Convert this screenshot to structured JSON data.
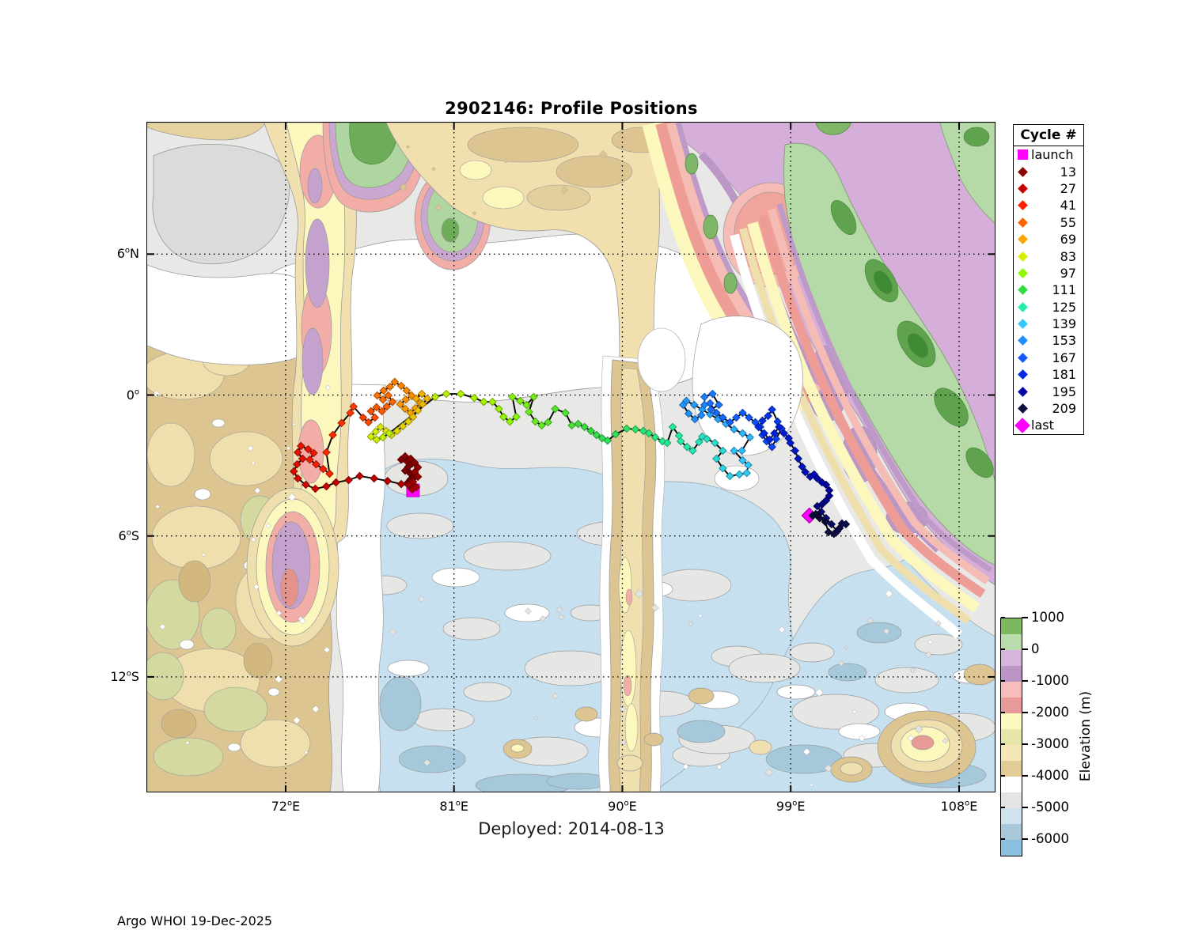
{
  "title": "2902146: Profile Positions",
  "deployed_text": "Deployed: 2014-08-13",
  "footer": "Argo WHOI 19-Dec-2025",
  "axes": {
    "x_tick_labels": [
      {
        "value": "72",
        "hem": "E"
      },
      {
        "value": "81",
        "hem": "E"
      },
      {
        "value": "90",
        "hem": "E"
      },
      {
        "value": "99",
        "hem": "E"
      },
      {
        "value": "108",
        "hem": "E"
      }
    ],
    "y_tick_labels": [
      {
        "value": "6",
        "hem": "N"
      },
      {
        "value": "0",
        "hem": ""
      },
      {
        "value": "6",
        "hem": "S"
      },
      {
        "value": "12",
        "hem": "S"
      }
    ]
  },
  "legend": {
    "header": "Cycle #",
    "items": [
      {
        "label": "launch",
        "marker": "square",
        "color": "#FF00FF"
      },
      {
        "label": "13",
        "marker": "diamond",
        "color": "#8B0000"
      },
      {
        "label": "27",
        "marker": "diamond",
        "color": "#C90000"
      },
      {
        "label": "41",
        "marker": "diamond",
        "color": "#FF1E00"
      },
      {
        "label": "55",
        "marker": "diamond",
        "color": "#FF6400"
      },
      {
        "label": "69",
        "marker": "diamond",
        "color": "#FFA300"
      },
      {
        "label": "83",
        "marker": "diamond",
        "color": "#D8EE00"
      },
      {
        "label": "97",
        "marker": "diamond",
        "color": "#8DFA00"
      },
      {
        "label": "111",
        "marker": "diamond",
        "color": "#33DD44"
      },
      {
        "label": "125",
        "marker": "diamond",
        "color": "#22EFA5"
      },
      {
        "label": "139",
        "marker": "diamond",
        "color": "#33C6FF"
      },
      {
        "label": "153",
        "marker": "diamond",
        "color": "#1E8FFF"
      },
      {
        "label": "167",
        "marker": "diamond",
        "color": "#1158FF"
      },
      {
        "label": "181",
        "marker": "diamond",
        "color": "#0026E6"
      },
      {
        "label": "195",
        "marker": "diamond",
        "color": "#0005A8"
      },
      {
        "label": "209",
        "marker": "diamond",
        "color": "#0E0E3E"
      },
      {
        "label": "last",
        "marker": "diamond-large",
        "color": "#FF00FF"
      }
    ]
  },
  "colorbar": {
    "label": "Elevation (m)",
    "tick_labels": [
      "1000",
      "0",
      "-1000",
      "-2000",
      "-3000",
      "-4000",
      "-5000",
      "-6000"
    ],
    "band_colors": [
      "#7CB860",
      "#B8DCAA",
      "#D7B4DB",
      "#BA95C6",
      "#F7BCBC",
      "#E89A9A",
      "#FCF9C0",
      "#E6E6A8",
      "#F6E7B8",
      "#E2CC96",
      "#FFFFFF",
      "#E4E4E4",
      "#CFE3EE",
      "#A8C8DA",
      "#8AC0DD"
    ],
    "band_step_m": 500,
    "top_value_m": 1000
  },
  "chart_data": {
    "type": "scatter",
    "title": "2902146: Profile Positions",
    "xlabel": "Longitude",
    "ylabel": "Latitude",
    "lon_range": [
      64.6,
      110.0
    ],
    "lat_range": [
      -16.9,
      11.6
    ],
    "grid_lon": [
      72,
      81,
      90,
      99,
      108
    ],
    "grid_lat": [
      6,
      0,
      -6,
      -12
    ],
    "legend_position": "upper right outside",
    "grid": "dotted",
    "launch": [
      78.81,
      -4.06
    ],
    "last": [
      100.0,
      -5.13
    ],
    "colormap_stops": [
      [
        0.0,
        "#6B0000"
      ],
      [
        0.055,
        "#8B0000"
      ],
      [
        0.12,
        "#C80000"
      ],
      [
        0.19,
        "#FF2000"
      ],
      [
        0.25,
        "#FF6500"
      ],
      [
        0.32,
        "#FFA300"
      ],
      [
        0.385,
        "#D8EE00"
      ],
      [
        0.45,
        "#8DFA00"
      ],
      [
        0.52,
        "#33DD44"
      ],
      [
        0.585,
        "#22EFA5"
      ],
      [
        0.65,
        "#33C6FF"
      ],
      [
        0.715,
        "#1E8FFF"
      ],
      [
        0.78,
        "#1158FF"
      ],
      [
        0.845,
        "#0026E6"
      ],
      [
        0.91,
        "#0005A8"
      ],
      [
        0.975,
        "#0E0E3E"
      ],
      [
        1.0,
        "#0A0A33"
      ]
    ],
    "trajectory_lonlat": [
      [
        78.68,
        -3.92
      ],
      [
        78.51,
        -3.75
      ],
      [
        78.68,
        -3.59
      ],
      [
        78.85,
        -3.45
      ],
      [
        78.64,
        -3.32
      ],
      [
        78.39,
        -3.22
      ],
      [
        78.56,
        -3.05
      ],
      [
        78.77,
        -2.91
      ],
      [
        78.47,
        -2.81
      ],
      [
        78.18,
        -2.75
      ],
      [
        78.39,
        -2.61
      ],
      [
        78.68,
        -2.71
      ],
      [
        78.9,
        -2.88
      ],
      [
        79.07,
        -3.08
      ],
      [
        78.9,
        -3.28
      ],
      [
        79.07,
        -3.48
      ],
      [
        78.81,
        -3.69
      ],
      [
        78.56,
        -3.82
      ],
      [
        78.77,
        -4.02
      ],
      [
        78.98,
        -3.92
      ],
      [
        78.18,
        -3.79
      ],
      [
        77.45,
        -3.66
      ],
      [
        76.73,
        -3.55
      ],
      [
        75.96,
        -3.45
      ],
      [
        75.37,
        -3.62
      ],
      [
        74.69,
        -3.72
      ],
      [
        74.18,
        -3.89
      ],
      [
        73.59,
        -3.99
      ],
      [
        73.08,
        -3.82
      ],
      [
        72.65,
        -3.55
      ],
      [
        72.44,
        -3.25
      ],
      [
        72.61,
        -2.95
      ],
      [
        72.91,
        -2.71
      ],
      [
        72.65,
        -2.44
      ],
      [
        72.82,
        -2.17
      ],
      [
        73.21,
        -2.31
      ],
      [
        73.5,
        -2.47
      ],
      [
        73.29,
        -2.75
      ],
      [
        73.63,
        -2.95
      ],
      [
        74.01,
        -3.15
      ],
      [
        74.35,
        -3.35
      ],
      [
        74.18,
        -2.44
      ],
      [
        74.52,
        -1.7
      ],
      [
        74.99,
        -1.19
      ],
      [
        75.46,
        -0.76
      ],
      [
        75.63,
        -0.49
      ],
      [
        76.14,
        -0.96
      ],
      [
        76.43,
        -1.16
      ],
      [
        76.77,
        -0.96
      ],
      [
        76.56,
        -0.69
      ],
      [
        76.86,
        -0.52
      ],
      [
        77.15,
        -0.69
      ],
      [
        77.41,
        -0.49
      ],
      [
        77.71,
        -0.29
      ],
      [
        77.49,
        -0.02
      ],
      [
        77.2,
        -0.19
      ],
      [
        76.9,
        -0.02
      ],
      [
        77.24,
        0.19
      ],
      [
        77.58,
        0.35
      ],
      [
        77.83,
        0.56
      ],
      [
        78.18,
        0.39
      ],
      [
        78.47,
        0.19
      ],
      [
        78.73,
        -0.02
      ],
      [
        78.43,
        -0.19
      ],
      [
        78.13,
        -0.39
      ],
      [
        78.39,
        -0.59
      ],
      [
        78.68,
        -0.76
      ],
      [
        78.94,
        -0.56
      ],
      [
        79.19,
        -0.35
      ],
      [
        78.98,
        -0.15
      ],
      [
        79.28,
        0.05
      ],
      [
        79.57,
        -0.15
      ],
      [
        79.32,
        -0.39
      ],
      [
        79.07,
        -0.66
      ],
      [
        78.81,
        -0.93
      ],
      [
        78.56,
        -1.13
      ],
      [
        78.26,
        -1.33
      ],
      [
        77.96,
        -1.53
      ],
      [
        77.66,
        -1.7
      ],
      [
        77.37,
        -1.53
      ],
      [
        77.07,
        -1.36
      ],
      [
        76.81,
        -1.56
      ],
      [
        76.56,
        -1.77
      ],
      [
        76.86,
        -1.9
      ],
      [
        77.2,
        -1.8
      ],
      [
        77.54,
        -1.63
      ],
      [
        80.0,
        -0.08
      ],
      [
        80.59,
        0.05
      ],
      [
        81.36,
        0.05
      ],
      [
        82.08,
        -0.12
      ],
      [
        82.59,
        -0.29
      ],
      [
        83.06,
        -0.29
      ],
      [
        83.4,
        -0.59
      ],
      [
        83.65,
        -0.93
      ],
      [
        83.99,
        -1.13
      ],
      [
        84.33,
        -0.93
      ],
      [
        84.12,
        -0.08
      ],
      [
        84.54,
        -0.25
      ],
      [
        84.88,
        -0.42
      ],
      [
        85.26,
        -0.08
      ],
      [
        85.01,
        -0.72
      ],
      [
        85.35,
        -1.13
      ],
      [
        85.69,
        -1.29
      ],
      [
        86.03,
        -1.16
      ],
      [
        86.41,
        -0.59
      ],
      [
        86.96,
        -0.76
      ],
      [
        87.3,
        -1.29
      ],
      [
        87.64,
        -1.23
      ],
      [
        87.98,
        -1.36
      ],
      [
        88.32,
        -1.53
      ],
      [
        88.62,
        -1.7
      ],
      [
        88.92,
        -1.84
      ],
      [
        89.21,
        -1.94
      ],
      [
        89.64,
        -1.67
      ],
      [
        90.23,
        -1.43
      ],
      [
        90.7,
        -1.46
      ],
      [
        91.12,
        -1.53
      ],
      [
        91.42,
        -1.63
      ],
      [
        91.76,
        -1.8
      ],
      [
        92.14,
        -1.97
      ],
      [
        92.4,
        -2.04
      ],
      [
        92.69,
        -1.36
      ],
      [
        93.03,
        -1.73
      ],
      [
        93.12,
        -1.97
      ],
      [
        93.46,
        -2.21
      ],
      [
        93.76,
        -2.37
      ],
      [
        94.1,
        -2.0
      ],
      [
        94.27,
        -1.77
      ],
      [
        94.52,
        -1.87
      ],
      [
        94.95,
        -2.04
      ],
      [
        95.37,
        -2.37
      ],
      [
        95.03,
        -2.71
      ],
      [
        95.37,
        -3.12
      ],
      [
        95.75,
        -3.45
      ],
      [
        96.26,
        -3.38
      ],
      [
        96.65,
        -3.32
      ],
      [
        96.73,
        -2.98
      ],
      [
        96.43,
        -2.78
      ],
      [
        95.97,
        -2.37
      ],
      [
        96.39,
        -2.37
      ],
      [
        96.82,
        -1.8
      ],
      [
        96.43,
        -1.63
      ],
      [
        95.97,
        -1.46
      ],
      [
        95.54,
        -1.23
      ],
      [
        95.12,
        -1.03
      ],
      [
        94.69,
        -0.82
      ],
      [
        94.27,
        -0.62
      ],
      [
        93.84,
        -0.42
      ],
      [
        93.42,
        -0.25
      ],
      [
        93.25,
        -0.42
      ],
      [
        93.54,
        -0.79
      ],
      [
        93.88,
        -1.03
      ],
      [
        94.22,
        -0.86
      ],
      [
        94.39,
        -0.42
      ],
      [
        94.39,
        -0.08
      ],
      [
        94.82,
        0.05
      ],
      [
        95.16,
        -0.42
      ],
      [
        94.73,
        -0.62
      ],
      [
        94.69,
        -0.35
      ],
      [
        95.03,
        -0.76
      ],
      [
        95.37,
        -0.96
      ],
      [
        95.75,
        -1.16
      ],
      [
        96.09,
        -0.96
      ],
      [
        96.43,
        -0.76
      ],
      [
        96.77,
        -0.96
      ],
      [
        97.11,
        -1.16
      ],
      [
        97.37,
        -1.36
      ],
      [
        97.49,
        -1.7
      ],
      [
        97.71,
        -1.97
      ],
      [
        98.0,
        -2.21
      ],
      [
        98.22,
        -1.87
      ],
      [
        98.51,
        -1.43
      ],
      [
        98.3,
        -1.13
      ],
      [
        98.0,
        -0.62
      ],
      [
        97.79,
        -0.89
      ],
      [
        97.49,
        -1.09
      ],
      [
        97.28,
        -1.36
      ],
      [
        97.58,
        -1.63
      ],
      [
        97.87,
        -1.9
      ],
      [
        98.13,
        -1.63
      ],
      [
        98.38,
        -1.36
      ],
      [
        98.64,
        -1.63
      ],
      [
        98.89,
        -1.84
      ],
      [
        98.98,
        -2.04
      ],
      [
        99.23,
        -2.37
      ],
      [
        99.4,
        -2.71
      ],
      [
        99.61,
        -3.05
      ],
      [
        99.78,
        -3.28
      ],
      [
        100.04,
        -3.48
      ],
      [
        100.25,
        -3.38
      ],
      [
        100.42,
        -3.55
      ],
      [
        100.67,
        -3.72
      ],
      [
        100.89,
        -3.82
      ],
      [
        101.06,
        -4.06
      ],
      [
        101.06,
        -4.29
      ],
      [
        100.89,
        -4.49
      ],
      [
        100.67,
        -4.66
      ],
      [
        100.42,
        -4.73
      ],
      [
        100.63,
        -4.97
      ],
      [
        100.89,
        -5.24
      ],
      [
        101.18,
        -5.5
      ],
      [
        101.48,
        -5.81
      ],
      [
        101.74,
        -5.47
      ],
      [
        101.95,
        -5.5
      ],
      [
        101.61,
        -5.67
      ],
      [
        101.31,
        -5.91
      ],
      [
        101.02,
        -5.84
      ],
      [
        100.85,
        -5.4
      ],
      [
        100.55,
        -5.24
      ],
      [
        100.34,
        -5.07
      ],
      [
        100.17,
        -5.13
      ]
    ]
  }
}
